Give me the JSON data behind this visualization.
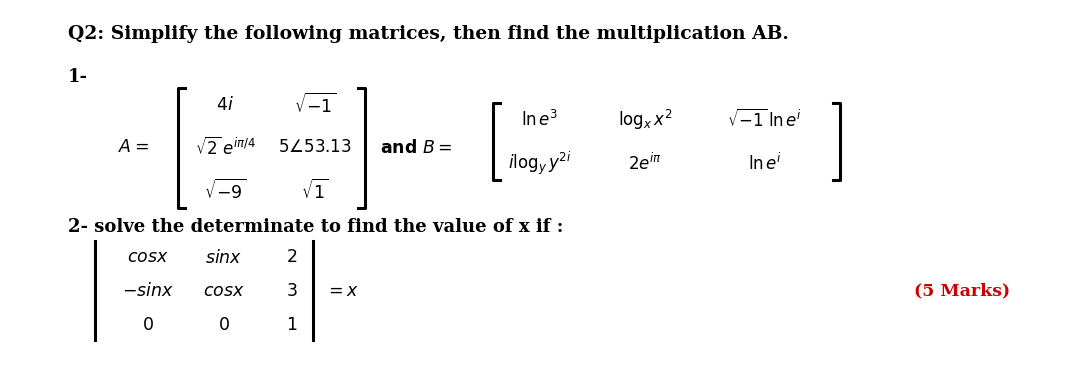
{
  "bg_color": "#ffffff",
  "title": "Q2: Simplify the following matrices, then find the multiplication AB.",
  "part1_label": "1-",
  "part2_label": "2- solve the determinate to find the value of x if :",
  "marks_text": "(5 Marks)",
  "marks_color": "#cc0000",
  "text_color": "#000000",
  "title_fs": 13.5,
  "body_fs": 13.0,
  "math_fs": 12.5
}
